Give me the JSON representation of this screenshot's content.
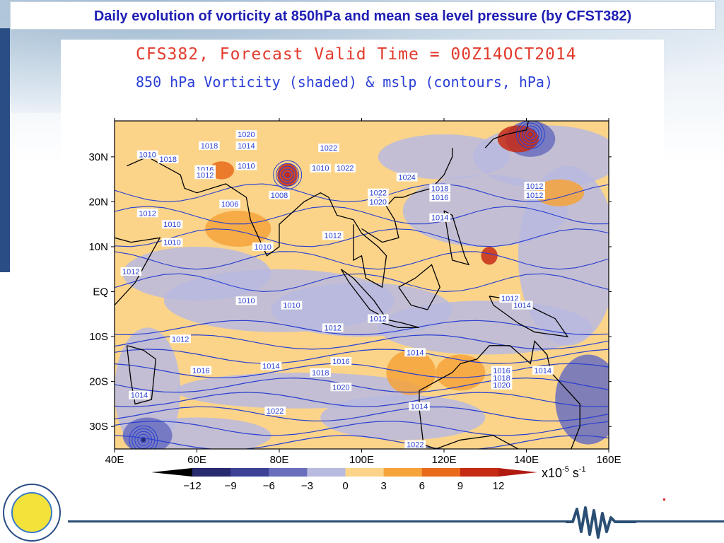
{
  "slide": {
    "title": "Daily evolution of vorticity at 850hPa and mean sea level pressure (by CFST382)"
  },
  "plot": {
    "title_line1": "CFS382, Forecast Valid Time = 00Z14OCT2014",
    "title_line2": "850 hPa Vorticity (shaded) & mslp (contours, hPa)"
  },
  "map": {
    "lon_range": [
      40,
      160
    ],
    "lat_range": [
      -35,
      38
    ],
    "lon_ticks": [
      "40E",
      "60E",
      "80E",
      "100E",
      "120E",
      "140E",
      "160E"
    ],
    "lon_tick_values": [
      40,
      60,
      80,
      100,
      120,
      140,
      160
    ],
    "lat_ticks": [
      "30N",
      "20N",
      "10N",
      "EQ",
      "10S",
      "20S",
      "30S"
    ],
    "lat_tick_values": [
      30,
      20,
      10,
      0,
      -10,
      -20,
      -30
    ],
    "contour_labels": [
      {
        "text": "1020",
        "lon": 72,
        "lat": 35
      },
      {
        "text": "1018",
        "lon": 63,
        "lat": 32.5
      },
      {
        "text": "1014",
        "lon": 72,
        "lat": 32.5
      },
      {
        "text": "1010",
        "lon": 48,
        "lat": 30.5
      },
      {
        "text": "1018",
        "lon": 53,
        "lat": 29.5
      },
      {
        "text": "1016",
        "lon": 62,
        "lat": 27.2
      },
      {
        "text": "1012",
        "lon": 62,
        "lat": 26
      },
      {
        "text": "1010",
        "lon": 72,
        "lat": 28
      },
      {
        "text": "1022",
        "lon": 92,
        "lat": 32
      },
      {
        "text": "1010",
        "lon": 90,
        "lat": 27.5
      },
      {
        "text": "1022",
        "lon": 96,
        "lat": 27.5
      },
      {
        "text": "1024",
        "lon": 111,
        "lat": 25.5
      },
      {
        "text": "1008",
        "lon": 80,
        "lat": 21.5
      },
      {
        "text": "1022",
        "lon": 104,
        "lat": 22
      },
      {
        "text": "1020",
        "lon": 104,
        "lat": 20
      },
      {
        "text": "1018",
        "lon": 119,
        "lat": 23
      },
      {
        "text": "1016",
        "lon": 119,
        "lat": 21
      },
      {
        "text": "1012",
        "lon": 142,
        "lat": 23.5
      },
      {
        "text": "1012",
        "lon": 142,
        "lat": 21.5
      },
      {
        "text": "1006",
        "lon": 68,
        "lat": 19.5
      },
      {
        "text": "1012",
        "lon": 48,
        "lat": 17.5
      },
      {
        "text": "1010",
        "lon": 54,
        "lat": 15
      },
      {
        "text": "1014",
        "lon": 119,
        "lat": 16.5
      },
      {
        "text": "1010",
        "lon": 54,
        "lat": 11
      },
      {
        "text": "1012",
        "lon": 93,
        "lat": 12.5
      },
      {
        "text": "1010",
        "lon": 76,
        "lat": 10
      },
      {
        "text": "1012",
        "lon": 44,
        "lat": 4.5
      },
      {
        "text": "1010",
        "lon": 72,
        "lat": -2
      },
      {
        "text": "1010",
        "lon": 83,
        "lat": -3
      },
      {
        "text": "1012",
        "lon": 136,
        "lat": -1.5
      },
      {
        "text": "1014",
        "lon": 139,
        "lat": -3
      },
      {
        "text": "1012",
        "lon": 104,
        "lat": -6
      },
      {
        "text": "1012",
        "lon": 93,
        "lat": -8
      },
      {
        "text": "1012",
        "lon": 56,
        "lat": -10.5
      },
      {
        "text": "1014",
        "lon": 113,
        "lat": -13.5
      },
      {
        "text": "1016",
        "lon": 95,
        "lat": -15.5
      },
      {
        "text": "1014",
        "lon": 78,
        "lat": -16.5
      },
      {
        "text": "1016",
        "lon": 61,
        "lat": -17.5
      },
      {
        "text": "1018",
        "lon": 90,
        "lat": -18
      },
      {
        "text": "1016",
        "lon": 134,
        "lat": -17.5
      },
      {
        "text": "1014",
        "lon": 144,
        "lat": -17.5
      },
      {
        "text": "1018",
        "lon": 134,
        "lat": -19.2
      },
      {
        "text": "1020",
        "lon": 134,
        "lat": -20.8
      },
      {
        "text": "1020",
        "lon": 95,
        "lat": -21.2
      },
      {
        "text": "1014",
        "lon": 46,
        "lat": -23
      },
      {
        "text": "1014",
        "lon": 114,
        "lat": -25.5
      },
      {
        "text": "1022",
        "lon": 79,
        "lat": -26.5
      },
      {
        "text": "1022",
        "lon": 113,
        "lat": -34
      }
    ]
  },
  "colorbar": {
    "tick_labels": [
      "−12",
      "−9",
      "−6",
      "−3",
      "0",
      "3",
      "6",
      "9",
      "12"
    ],
    "units": "x10",
    "units_exp": "-5",
    "units_suffix": "s",
    "units_suffix_exp": "-1",
    "colors": [
      "#272a6e",
      "#3c4196",
      "#6a6fbd",
      "#b8badf",
      "#fbd48a",
      "#f6a33a",
      "#e86a1a",
      "#c52a14"
    ]
  }
}
